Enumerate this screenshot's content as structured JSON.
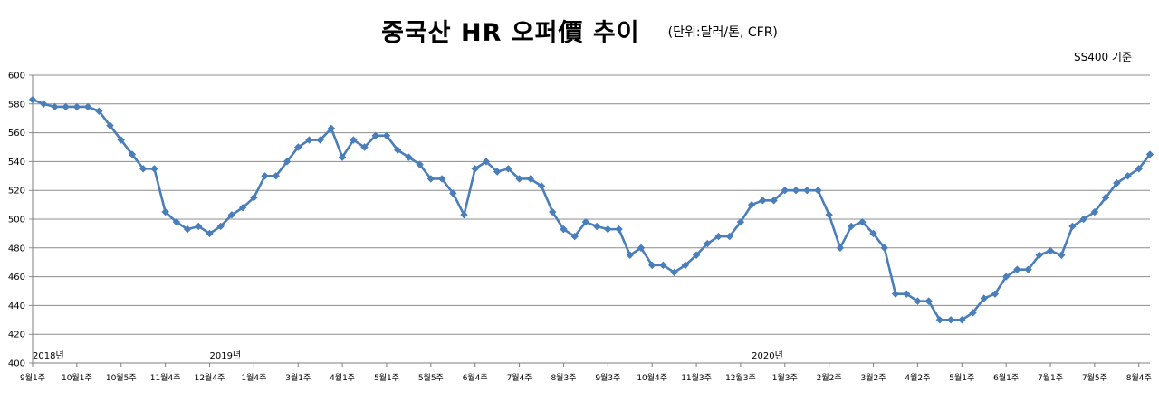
{
  "chart_data": {
    "type": "line",
    "title": "중국산 HR 오퍼價 추이",
    "unit_note": "(단위:달러/톤, CFR)",
    "basis_note": "SS400 기준",
    "xlabel": "",
    "ylabel": "",
    "ylim": [
      400,
      600
    ],
    "yticks": [
      400,
      420,
      440,
      460,
      480,
      500,
      520,
      540,
      560,
      580,
      600
    ],
    "grid": true,
    "legend": "none",
    "series_color": "#4a7ebb",
    "x_tick_labels": [
      {
        "index": 0,
        "label": "9월1주"
      },
      {
        "index": 4,
        "label": "10월1주"
      },
      {
        "index": 8,
        "label": "10월5주"
      },
      {
        "index": 12,
        "label": "11월4주"
      },
      {
        "index": 16,
        "label": "12월4주"
      },
      {
        "index": 20,
        "label": "1월4주"
      },
      {
        "index": 24,
        "label": "3월1주"
      },
      {
        "index": 28,
        "label": "4월1주"
      },
      {
        "index": 32,
        "label": "5월1주"
      },
      {
        "index": 36,
        "label": "5월5주"
      },
      {
        "index": 40,
        "label": "6월4주"
      },
      {
        "index": 44,
        "label": "7월4주"
      },
      {
        "index": 48,
        "label": "8월3주"
      },
      {
        "index": 52,
        "label": "9월3주"
      },
      {
        "index": 56,
        "label": "10월4주"
      },
      {
        "index": 60,
        "label": "11월3주"
      },
      {
        "index": 64,
        "label": "12월3주"
      },
      {
        "index": 68,
        "label": "1월3주"
      },
      {
        "index": 72,
        "label": "2월2주"
      },
      {
        "index": 76,
        "label": "3월2주"
      },
      {
        "index": 80,
        "label": "4월2주"
      },
      {
        "index": 84,
        "label": "5월1주"
      },
      {
        "index": 88,
        "label": "6월1주"
      },
      {
        "index": 92,
        "label": "7월1주"
      },
      {
        "index": 96,
        "label": "7월5주"
      },
      {
        "index": 100,
        "label": "8월4주"
      }
    ],
    "year_labels": [
      {
        "index": 0,
        "label": "2018년"
      },
      {
        "index": 16,
        "label": "2019년"
      },
      {
        "index": 65,
        "label": "2020년"
      }
    ],
    "series": [
      {
        "values": [
          583,
          580,
          578,
          578,
          578,
          578,
          575,
          565,
          555,
          545,
          535,
          535,
          505,
          498,
          493,
          495,
          490,
          495,
          503,
          508,
          515,
          530,
          530,
          540,
          550,
          555,
          555,
          563,
          543,
          555,
          550,
          558,
          558,
          548,
          543,
          538,
          528,
          528,
          518,
          503,
          535,
          540,
          533,
          535,
          528,
          528,
          523,
          505,
          493,
          488,
          498,
          495,
          493,
          493,
          475,
          480,
          468,
          468,
          463,
          468,
          475,
          483,
          488,
          488,
          498,
          510,
          513,
          513,
          520,
          520,
          520,
          520,
          503,
          480,
          495,
          498,
          490,
          480,
          448,
          448,
          443,
          443,
          430,
          430,
          430,
          435,
          445,
          448,
          460,
          465,
          465,
          475,
          478,
          475,
          495,
          500,
          505,
          515,
          525,
          530,
          535,
          545
        ]
      }
    ]
  }
}
